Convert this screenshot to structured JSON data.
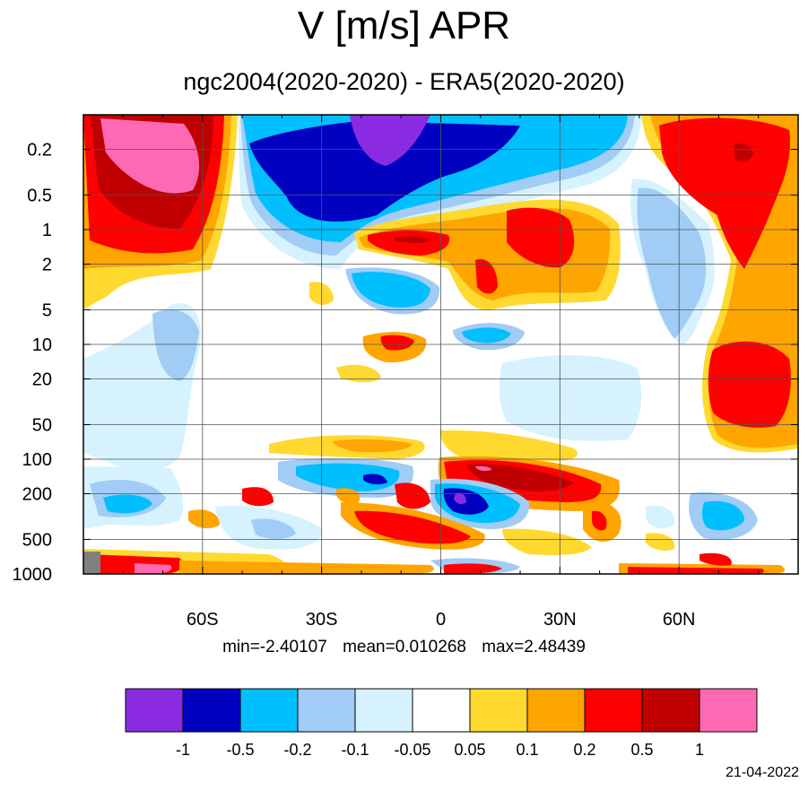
{
  "title": "V [m/s] APR",
  "subtitle": "ngc2004(2020-2020) - ERA5(2020-2020)",
  "stats": {
    "min": "min=-2.40107",
    "mean": "mean=0.010268",
    "max": "max=2.48439"
  },
  "date": "21-04-2022",
  "chart_data": {
    "type": "heatmap",
    "title": "V [m/s] APR",
    "subtitle": "ngc2004(2020-2020) - ERA5(2020-2020)",
    "x_axis": {
      "range": [
        -90,
        90
      ],
      "ticks": [
        -60,
        -30,
        0,
        30,
        60
      ],
      "tick_labels": [
        "60S",
        "30S",
        "0",
        "30N",
        "60N"
      ]
    },
    "y_axis": {
      "scale": "log",
      "reversed": true,
      "range": [
        0.1,
        1000
      ],
      "ticks": [
        0.2,
        0.5,
        1,
        2,
        5,
        10,
        20,
        50,
        100,
        200,
        500,
        1000
      ],
      "tick_labels": [
        "0.2",
        "0.5",
        "1",
        "2",
        "5",
        "10",
        "20",
        "50",
        "100",
        "200",
        "500",
        "1000"
      ]
    },
    "grid": true,
    "colorbar": {
      "levels": [
        "-1",
        "-0.5",
        "-0.2",
        "-0.1",
        "-0.05",
        "0.05",
        "0.1",
        "0.2",
        "0.5",
        "1"
      ],
      "colors": [
        "#8a2be2",
        "#0000c0",
        "#00bfff",
        "#a0ccf5",
        "#d6f2ff",
        "#ffffff",
        "#ffd92f",
        "#ffa500",
        "#ff0000",
        "#c00000",
        "#ff69b4"
      ]
    },
    "field_min": -2.40107,
    "field_mean": 0.010268,
    "field_max": 2.48439
  }
}
